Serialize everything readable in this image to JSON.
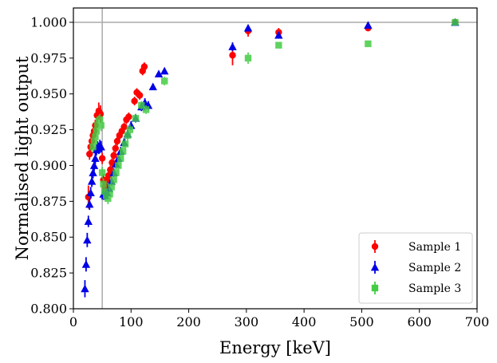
{
  "chart_data": {
    "type": "scatter",
    "title": "",
    "xlabel": "Energy [keV]",
    "ylabel": "Normalised light output",
    "xlim": [
      0,
      700
    ],
    "ylim": [
      0.8,
      1.01
    ],
    "x_ticks": [
      0,
      100,
      200,
      300,
      400,
      500,
      600,
      700
    ],
    "y_ticks": [
      0.8,
      0.825,
      0.85,
      0.875,
      0.9,
      0.925,
      0.95,
      0.975,
      1.0
    ],
    "x_tick_labels": [
      "0",
      "100",
      "200",
      "300",
      "400",
      "500",
      "600",
      "700"
    ],
    "y_tick_labels": [
      "0.800",
      "0.825",
      "0.850",
      "0.875",
      "0.900",
      "0.925",
      "0.950",
      "0.975",
      "1.000"
    ],
    "reference_lines": {
      "horizontal_y": 1.0,
      "vertical_x": 50
    },
    "legend_position": "bottom-right",
    "series": [
      {
        "name": "Sample 1",
        "color": "#ff0000",
        "marker": "circle",
        "points": [
          {
            "x": 26,
            "y": 0.878,
            "err": 0.008
          },
          {
            "x": 28,
            "y": 0.908,
            "err": 0.004
          },
          {
            "x": 30,
            "y": 0.913,
            "err": 0.004
          },
          {
            "x": 32,
            "y": 0.917,
            "err": 0.004
          },
          {
            "x": 34,
            "y": 0.921,
            "err": 0.004
          },
          {
            "x": 36,
            "y": 0.924,
            "err": 0.004
          },
          {
            "x": 38,
            "y": 0.928,
            "err": 0.004
          },
          {
            "x": 41,
            "y": 0.935,
            "err": 0.005
          },
          {
            "x": 44,
            "y": 0.938,
            "err": 0.006
          },
          {
            "x": 47,
            "y": 0.936,
            "err": 0.006
          },
          {
            "x": 50,
            "y": 0.905,
            "err": 0.004
          },
          {
            "x": 52,
            "y": 0.89,
            "err": 0.004
          },
          {
            "x": 55,
            "y": 0.885,
            "err": 0.004
          },
          {
            "x": 58,
            "y": 0.89,
            "err": 0.004
          },
          {
            "x": 61,
            "y": 0.893,
            "err": 0.004
          },
          {
            "x": 64,
            "y": 0.897,
            "err": 0.003
          },
          {
            "x": 67,
            "y": 0.902,
            "err": 0.003
          },
          {
            "x": 70,
            "y": 0.907,
            "err": 0.003
          },
          {
            "x": 73,
            "y": 0.912,
            "err": 0.003
          },
          {
            "x": 76,
            "y": 0.917,
            "err": 0.003
          },
          {
            "x": 80,
            "y": 0.921,
            "err": 0.003
          },
          {
            "x": 84,
            "y": 0.924,
            "err": 0.003
          },
          {
            "x": 88,
            "y": 0.927,
            "err": 0.003
          },
          {
            "x": 92,
            "y": 0.932,
            "err": 0.003
          },
          {
            "x": 96,
            "y": 0.934,
            "err": 0.003
          },
          {
            "x": 106,
            "y": 0.945,
            "err": 0.003
          },
          {
            "x": 110,
            "y": 0.951,
            "err": 0.003
          },
          {
            "x": 115,
            "y": 0.949,
            "err": 0.003
          },
          {
            "x": 120,
            "y": 0.966,
            "err": 0.003
          },
          {
            "x": 123,
            "y": 0.969,
            "err": 0.003
          },
          {
            "x": 276,
            "y": 0.977,
            "err": 0.007
          },
          {
            "x": 303,
            "y": 0.994,
            "err": 0.004
          },
          {
            "x": 356,
            "y": 0.993,
            "err": 0.003
          },
          {
            "x": 511,
            "y": 0.996,
            "err": 0.002
          },
          {
            "x": 662,
            "y": 1.0,
            "err": 0.001
          }
        ]
      },
      {
        "name": "Sample 2",
        "color": "#0000e6",
        "marker": "triangle",
        "points": [
          {
            "x": 20,
            "y": 0.814,
            "err": 0.006
          },
          {
            "x": 22,
            "y": 0.831,
            "err": 0.005
          },
          {
            "x": 24,
            "y": 0.848,
            "err": 0.005
          },
          {
            "x": 26,
            "y": 0.861,
            "err": 0.004
          },
          {
            "x": 28,
            "y": 0.873,
            "err": 0.004
          },
          {
            "x": 30,
            "y": 0.881,
            "err": 0.004
          },
          {
            "x": 32,
            "y": 0.889,
            "err": 0.004
          },
          {
            "x": 34,
            "y": 0.895,
            "err": 0.004
          },
          {
            "x": 36,
            "y": 0.9,
            "err": 0.004
          },
          {
            "x": 38,
            "y": 0.905,
            "err": 0.004
          },
          {
            "x": 40,
            "y": 0.911,
            "err": 0.004
          },
          {
            "x": 42,
            "y": 0.913,
            "err": 0.004
          },
          {
            "x": 44,
            "y": 0.912,
            "err": 0.004
          },
          {
            "x": 46,
            "y": 0.914,
            "err": 0.004
          },
          {
            "x": 48,
            "y": 0.913,
            "err": 0.004
          },
          {
            "x": 52,
            "y": 0.88,
            "err": 0.004
          },
          {
            "x": 55,
            "y": 0.879,
            "err": 0.003
          },
          {
            "x": 58,
            "y": 0.881,
            "err": 0.003
          },
          {
            "x": 62,
            "y": 0.884,
            "err": 0.003
          },
          {
            "x": 66,
            "y": 0.889,
            "err": 0.003
          },
          {
            "x": 70,
            "y": 0.895,
            "err": 0.003
          },
          {
            "x": 74,
            "y": 0.901,
            "err": 0.003
          },
          {
            "x": 78,
            "y": 0.905,
            "err": 0.003
          },
          {
            "x": 82,
            "y": 0.91,
            "err": 0.003
          },
          {
            "x": 88,
            "y": 0.916,
            "err": 0.003
          },
          {
            "x": 94,
            "y": 0.922,
            "err": 0.003
          },
          {
            "x": 100,
            "y": 0.928,
            "err": 0.003
          },
          {
            "x": 108,
            "y": 0.933,
            "err": 0.003
          },
          {
            "x": 118,
            "y": 0.941,
            "err": 0.003
          },
          {
            "x": 124,
            "y": 0.944,
            "err": 0.003
          },
          {
            "x": 130,
            "y": 0.942,
            "err": 0.003
          },
          {
            "x": 138,
            "y": 0.955,
            "err": 0.002
          },
          {
            "x": 148,
            "y": 0.964,
            "err": 0.002
          },
          {
            "x": 158,
            "y": 0.966,
            "err": 0.002
          },
          {
            "x": 276,
            "y": 0.983,
            "err": 0.003
          },
          {
            "x": 303,
            "y": 0.996,
            "err": 0.002
          },
          {
            "x": 356,
            "y": 0.991,
            "err": 0.002
          },
          {
            "x": 511,
            "y": 0.998,
            "err": 0.002
          },
          {
            "x": 662,
            "y": 1.0,
            "err": 0.001
          }
        ]
      },
      {
        "name": "Sample 3",
        "color": "#44cc44",
        "marker": "square",
        "points": [
          {
            "x": 34,
            "y": 0.913,
            "err": 0.004
          },
          {
            "x": 36,
            "y": 0.917,
            "err": 0.004
          },
          {
            "x": 38,
            "y": 0.92,
            "err": 0.004
          },
          {
            "x": 40,
            "y": 0.924,
            "err": 0.004
          },
          {
            "x": 42,
            "y": 0.928,
            "err": 0.004
          },
          {
            "x": 44,
            "y": 0.931,
            "err": 0.004
          },
          {
            "x": 46,
            "y": 0.932,
            "err": 0.004
          },
          {
            "x": 48,
            "y": 0.928,
            "err": 0.004
          },
          {
            "x": 50,
            "y": 0.895,
            "err": 0.004
          },
          {
            "x": 52,
            "y": 0.887,
            "err": 0.004
          },
          {
            "x": 54,
            "y": 0.882,
            "err": 0.004
          },
          {
            "x": 57,
            "y": 0.879,
            "err": 0.004
          },
          {
            "x": 60,
            "y": 0.877,
            "err": 0.004
          },
          {
            "x": 63,
            "y": 0.88,
            "err": 0.004
          },
          {
            "x": 66,
            "y": 0.885,
            "err": 0.004
          },
          {
            "x": 70,
            "y": 0.89,
            "err": 0.004
          },
          {
            "x": 74,
            "y": 0.895,
            "err": 0.004
          },
          {
            "x": 78,
            "y": 0.9,
            "err": 0.004
          },
          {
            "x": 82,
            "y": 0.905,
            "err": 0.004
          },
          {
            "x": 86,
            "y": 0.91,
            "err": 0.004
          },
          {
            "x": 90,
            "y": 0.915,
            "err": 0.004
          },
          {
            "x": 94,
            "y": 0.921,
            "err": 0.004
          },
          {
            "x": 98,
            "y": 0.925,
            "err": 0.004
          },
          {
            "x": 108,
            "y": 0.933,
            "err": 0.003
          },
          {
            "x": 118,
            "y": 0.942,
            "err": 0.003
          },
          {
            "x": 126,
            "y": 0.939,
            "err": 0.003
          },
          {
            "x": 158,
            "y": 0.959,
            "err": 0.003
          },
          {
            "x": 303,
            "y": 0.975,
            "err": 0.004
          },
          {
            "x": 356,
            "y": 0.984,
            "err": 0.002
          },
          {
            "x": 511,
            "y": 0.985,
            "err": 0.002
          },
          {
            "x": 662,
            "y": 1.0,
            "err": 0.001
          }
        ]
      }
    ]
  }
}
